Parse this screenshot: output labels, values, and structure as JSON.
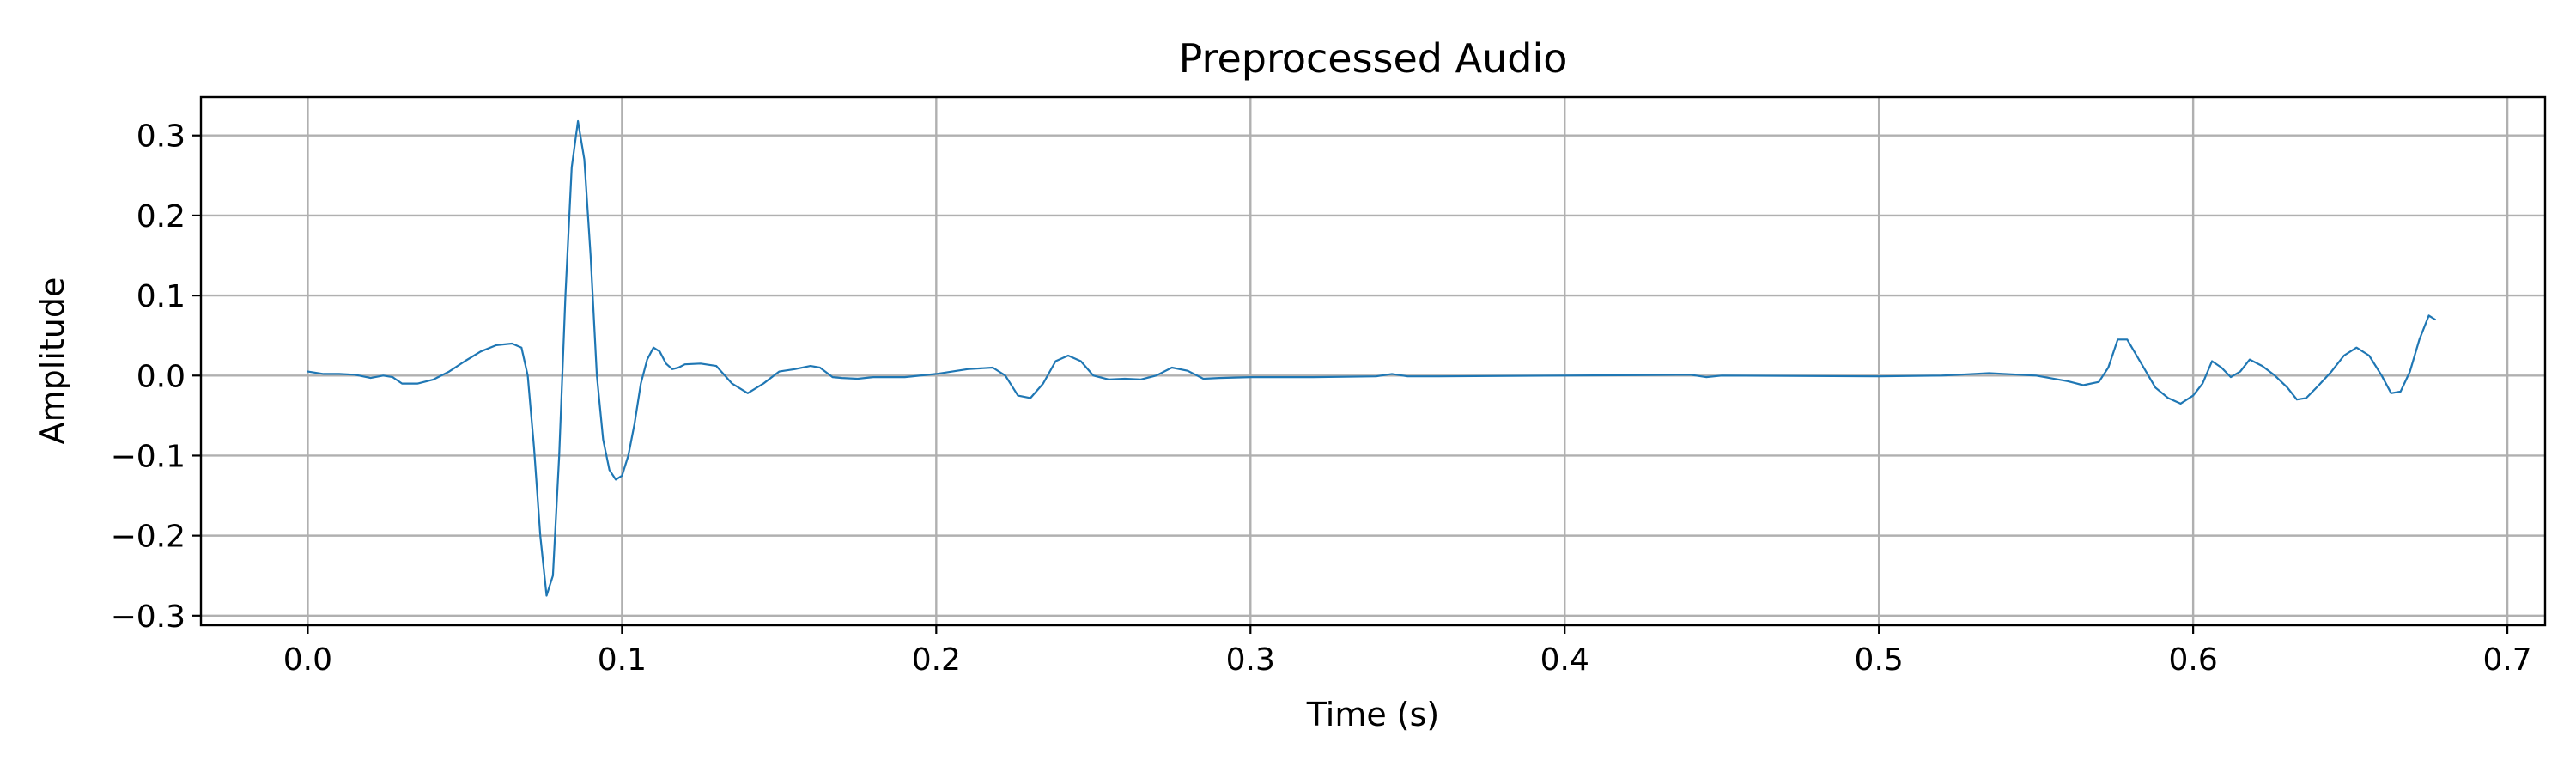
{
  "chart_data": {
    "type": "line",
    "title": "Preprocessed Audio",
    "xlabel": "Time (s)",
    "ylabel": "Amplitude",
    "xlim": [
      -0.034,
      0.712
    ],
    "ylim": [
      -0.312,
      0.348
    ],
    "xticks": [
      0.0,
      0.1,
      0.2,
      0.3,
      0.4,
      0.5,
      0.6,
      0.7
    ],
    "xtick_labels": [
      "0.0",
      "0.1",
      "0.2",
      "0.3",
      "0.4",
      "0.5",
      "0.6",
      "0.7"
    ],
    "yticks": [
      0.3,
      0.2,
      0.1,
      0.0,
      -0.1,
      -0.2,
      -0.3
    ],
    "ytick_labels": [
      "0.3",
      "0.2",
      "0.1",
      "0.0",
      "−0.1",
      "−0.2",
      "−0.3"
    ],
    "grid": true,
    "series": [
      {
        "color": "#1f77b4",
        "x": [
          0.0,
          0.005,
          0.01,
          0.015,
          0.02,
          0.024,
          0.027,
          0.03,
          0.035,
          0.04,
          0.045,
          0.05,
          0.055,
          0.06,
          0.065,
          0.068,
          0.07,
          0.072,
          0.074,
          0.076,
          0.078,
          0.08,
          0.082,
          0.084,
          0.086,
          0.088,
          0.09,
          0.092,
          0.094,
          0.096,
          0.098,
          0.1,
          0.102,
          0.104,
          0.106,
          0.108,
          0.11,
          0.112,
          0.114,
          0.116,
          0.118,
          0.12,
          0.125,
          0.13,
          0.135,
          0.14,
          0.145,
          0.15,
          0.155,
          0.16,
          0.163,
          0.167,
          0.17,
          0.175,
          0.18,
          0.19,
          0.2,
          0.21,
          0.218,
          0.222,
          0.226,
          0.23,
          0.234,
          0.238,
          0.242,
          0.246,
          0.25,
          0.255,
          0.26,
          0.265,
          0.27,
          0.275,
          0.28,
          0.285,
          0.29,
          0.3,
          0.32,
          0.34,
          0.345,
          0.35,
          0.36,
          0.4,
          0.44,
          0.445,
          0.45,
          0.5,
          0.52,
          0.535,
          0.55,
          0.56,
          0.565,
          0.57,
          0.573,
          0.576,
          0.579,
          0.582,
          0.585,
          0.588,
          0.592,
          0.596,
          0.6,
          0.603,
          0.606,
          0.609,
          0.612,
          0.615,
          0.618,
          0.622,
          0.626,
          0.63,
          0.633,
          0.636,
          0.64,
          0.644,
          0.648,
          0.652,
          0.656,
          0.66,
          0.663,
          0.666,
          0.669,
          0.672,
          0.675,
          0.677
        ],
        "y": [
          0.005,
          0.002,
          0.002,
          0.001,
          -0.003,
          0.0,
          -0.002,
          -0.01,
          -0.01,
          -0.005,
          0.005,
          0.018,
          0.03,
          0.038,
          0.04,
          0.035,
          0.0,
          -0.09,
          -0.2,
          -0.275,
          -0.25,
          -0.1,
          0.1,
          0.26,
          0.318,
          0.27,
          0.15,
          0.0,
          -0.08,
          -0.118,
          -0.13,
          -0.125,
          -0.1,
          -0.06,
          -0.01,
          0.02,
          0.035,
          0.03,
          0.015,
          0.008,
          0.01,
          0.014,
          0.015,
          0.012,
          -0.01,
          -0.022,
          -0.01,
          0.005,
          0.008,
          0.012,
          0.01,
          -0.002,
          -0.003,
          -0.004,
          -0.002,
          -0.002,
          0.002,
          0.008,
          0.01,
          0.0,
          -0.025,
          -0.028,
          -0.01,
          0.018,
          0.025,
          0.018,
          0.0,
          -0.005,
          -0.004,
          -0.005,
          0.0,
          0.01,
          0.006,
          -0.004,
          -0.003,
          -0.002,
          -0.002,
          -0.001,
          0.002,
          -0.001,
          -0.001,
          0.0,
          0.001,
          -0.002,
          0.0,
          -0.001,
          0.0,
          0.003,
          0.0,
          -0.007,
          -0.012,
          -0.008,
          0.01,
          0.045,
          0.045,
          0.025,
          0.005,
          -0.015,
          -0.028,
          -0.035,
          -0.025,
          -0.01,
          0.018,
          0.01,
          -0.002,
          0.005,
          0.02,
          0.012,
          0.0,
          -0.015,
          -0.03,
          -0.028,
          -0.012,
          0.005,
          0.025,
          0.035,
          0.025,
          0.0,
          -0.022,
          -0.02,
          0.005,
          0.045,
          0.075,
          0.07
        ]
      }
    ]
  }
}
